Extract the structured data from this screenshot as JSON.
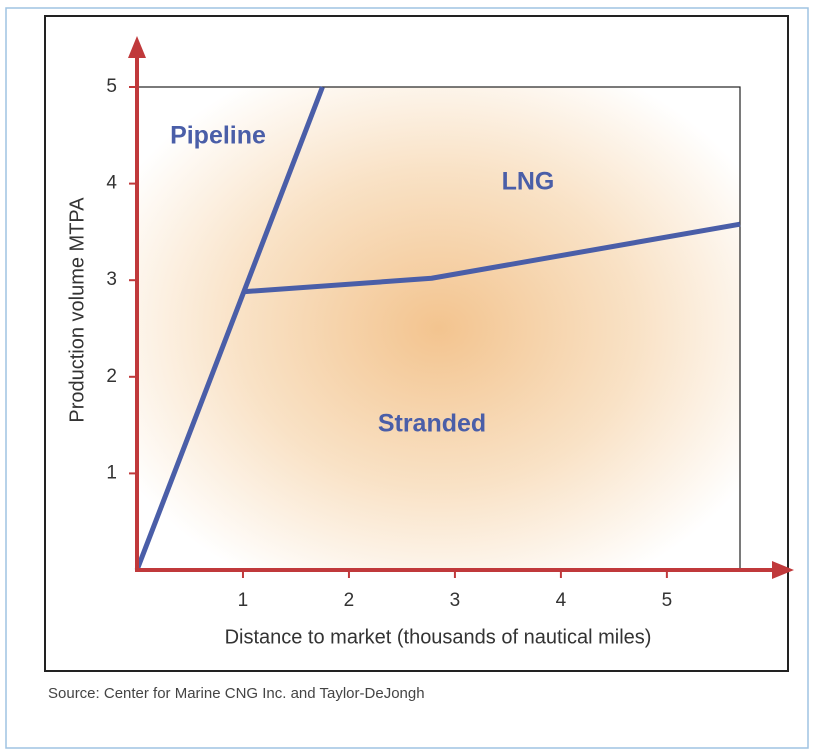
{
  "chart_data": {
    "type": "line",
    "x_label": "Distance to market (thousands of nautical miles)",
    "y_label": "Production volume MTPA",
    "source": "Source:  Center for Marine CNG Inc. and Taylor-DeJongh",
    "annotations": [
      "Pipeline",
      "LNG",
      "Stranded"
    ],
    "xlim": [
      0,
      5.69
    ],
    "ylim": [
      0,
      5
    ],
    "xticks": [
      1,
      2,
      3,
      4,
      5
    ],
    "yticks": [
      1,
      2,
      3,
      4,
      5
    ],
    "series": [
      {
        "color": "#4a5ea8",
        "x": [
          0,
          1.75
        ],
        "values": [
          0,
          5
        ]
      },
      {
        "color": "#4a5ea8",
        "x": [
          1,
          2.78,
          5.69
        ],
        "values": [
          2.88,
          3.02,
          3.58
        ]
      }
    ]
  }
}
